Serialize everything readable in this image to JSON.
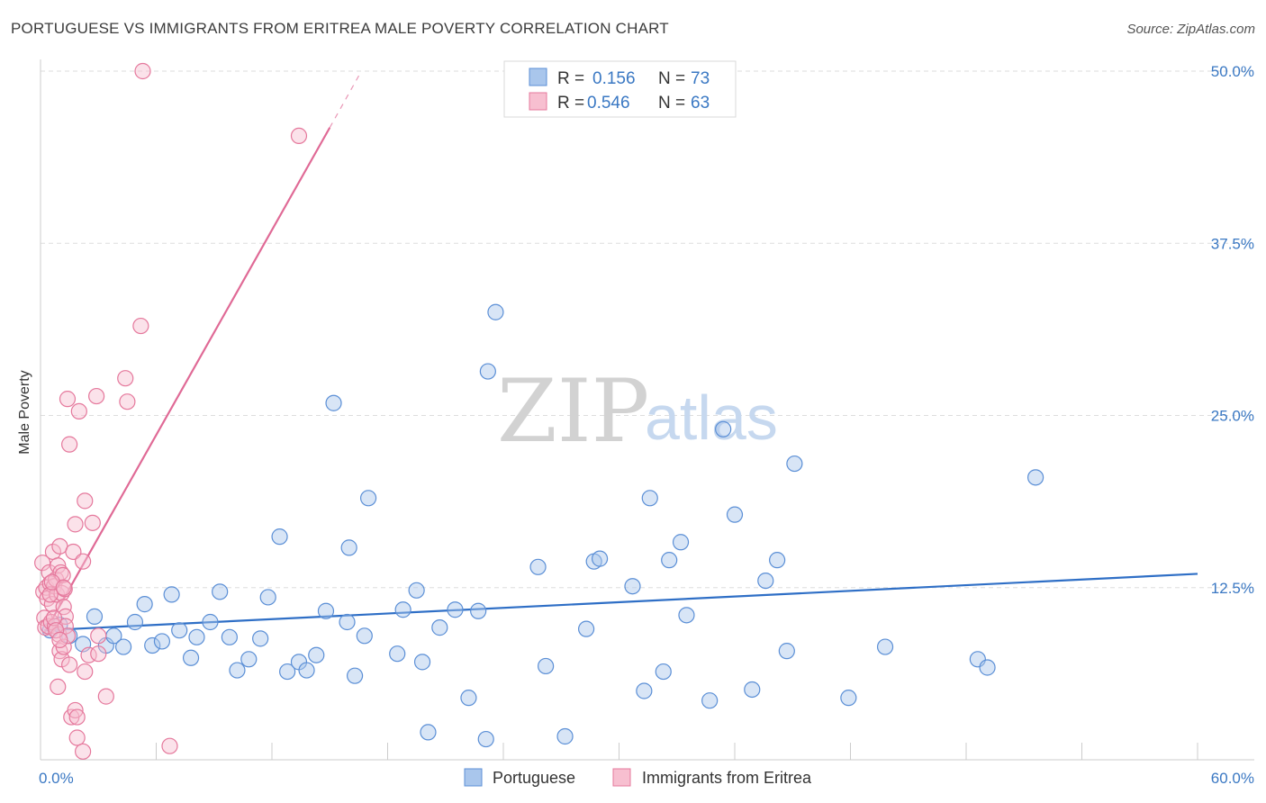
{
  "title": "PORTUGUESE VS IMMIGRANTS FROM ERITREA MALE POVERTY CORRELATION CHART",
  "source": "Source: ZipAtlas.com",
  "watermark": {
    "zip": "ZIP",
    "atlas": "atlas"
  },
  "legend": {
    "rows": [
      {
        "r_label": "R =",
        "r_value": "0.156",
        "n_label": "N =",
        "n_value": "73"
      },
      {
        "r_label": "R =",
        "r_value": "0.546",
        "n_label": "N =",
        "n_value": "63"
      }
    ]
  },
  "colors": {
    "blue_fill": "#a9c6ec",
    "blue_stroke": "#5b8fd6",
    "blue_line": "#2f6fc6",
    "pink_fill": "#f7bfd0",
    "pink_stroke": "#e5789c",
    "pink_line": "#e06a96",
    "grid": "#dddddd",
    "axis": "#cccccc",
    "tick_text": "#3a78c3"
  },
  "chart_data": {
    "type": "scatter",
    "title": "PORTUGUESE VS IMMIGRANTS FROM ERITREA MALE POVERTY CORRELATION CHART",
    "xlabel": "",
    "ylabel": "Male Poverty",
    "xlim": [
      0,
      60
    ],
    "ylim": [
      0,
      50
    ],
    "x_tick_labels": [
      "0.0%",
      "60.0%"
    ],
    "y_tick_labels": [
      "12.5%",
      "25.0%",
      "37.5%",
      "50.0%"
    ],
    "y_tick_values": [
      12.5,
      25.0,
      37.5,
      50.0
    ],
    "grid": true,
    "legend_position": "top-center",
    "series": [
      {
        "name": "Portuguese",
        "color": "#5b8fd6",
        "r": 0.156,
        "n": 73,
        "trend": {
          "x0": 0.2,
          "y0": 9.4,
          "x1": 60,
          "y1": 13.5
        },
        "points": [
          [
            0.5,
            9.4
          ],
          [
            1.0,
            9.8
          ],
          [
            1.5,
            9.0
          ],
          [
            2.2,
            8.4
          ],
          [
            2.8,
            10.4
          ],
          [
            3.4,
            8.3
          ],
          [
            3.8,
            9.0
          ],
          [
            4.3,
            8.2
          ],
          [
            4.9,
            10.0
          ],
          [
            5.4,
            11.3
          ],
          [
            5.8,
            8.3
          ],
          [
            6.3,
            8.6
          ],
          [
            6.8,
            12.0
          ],
          [
            7.2,
            9.4
          ],
          [
            7.8,
            7.4
          ],
          [
            8.1,
            8.9
          ],
          [
            8.8,
            10.0
          ],
          [
            9.3,
            12.2
          ],
          [
            9.8,
            8.9
          ],
          [
            10.2,
            6.5
          ],
          [
            10.8,
            7.3
          ],
          [
            11.4,
            8.8
          ],
          [
            11.8,
            11.8
          ],
          [
            12.4,
            16.2
          ],
          [
            12.8,
            6.4
          ],
          [
            13.4,
            7.1
          ],
          [
            13.8,
            6.5
          ],
          [
            14.3,
            7.6
          ],
          [
            14.8,
            10.8
          ],
          [
            16.0,
            15.4
          ],
          [
            16.3,
            6.1
          ],
          [
            16.8,
            9.0
          ],
          [
            17.0,
            19.0
          ],
          [
            18.5,
            7.7
          ],
          [
            18.8,
            10.9
          ],
          [
            19.5,
            12.3
          ],
          [
            19.8,
            7.1
          ],
          [
            20.1,
            2.0
          ],
          [
            20.7,
            9.6
          ],
          [
            21.5,
            10.9
          ],
          [
            22.2,
            4.5
          ],
          [
            22.7,
            10.8
          ],
          [
            23.2,
            28.2
          ],
          [
            23.1,
            1.5
          ],
          [
            23.6,
            32.5
          ],
          [
            25.8,
            14.0
          ],
          [
            26.2,
            6.8
          ],
          [
            27.2,
            1.7
          ],
          [
            28.3,
            9.5
          ],
          [
            28.7,
            14.4
          ],
          [
            29.0,
            14.6
          ],
          [
            30.7,
            12.6
          ],
          [
            31.3,
            5.0
          ],
          [
            31.6,
            19.0
          ],
          [
            32.3,
            6.4
          ],
          [
            32.6,
            14.5
          ],
          [
            33.2,
            15.8
          ],
          [
            33.5,
            10.5
          ],
          [
            34.7,
            4.3
          ],
          [
            35.4,
            24.0
          ],
          [
            36.0,
            17.8
          ],
          [
            36.9,
            5.1
          ],
          [
            37.6,
            13.0
          ],
          [
            38.2,
            14.5
          ],
          [
            38.7,
            7.9
          ],
          [
            39.1,
            21.5
          ],
          [
            41.9,
            4.5
          ],
          [
            43.8,
            8.2
          ],
          [
            48.6,
            7.3
          ],
          [
            49.1,
            6.7
          ],
          [
            51.6,
            20.5
          ],
          [
            15.2,
            25.9
          ],
          [
            15.9,
            10.0
          ]
        ]
      },
      {
        "name": "Immigrants from Eritrea",
        "color": "#e5789c",
        "r": 0.546,
        "n": 63,
        "trend": {
          "x0": 0.2,
          "y0": 9.2,
          "x1": 15.0,
          "y1": 45.9
        },
        "trend_dashed": {
          "x0": 15.0,
          "y0": 45.9,
          "x1": 16.6,
          "y1": 49.9
        },
        "points": [
          [
            0.1,
            14.3
          ],
          [
            0.15,
            12.2
          ],
          [
            0.2,
            10.3
          ],
          [
            0.25,
            9.6
          ],
          [
            0.3,
            12.5
          ],
          [
            0.35,
            11.7
          ],
          [
            0.4,
            9.7
          ],
          [
            0.45,
            13.6
          ],
          [
            0.5,
            12.8
          ],
          [
            0.55,
            10.0
          ],
          [
            0.6,
            11.3
          ],
          [
            0.65,
            15.1
          ],
          [
            0.7,
            12.6
          ],
          [
            0.75,
            9.7
          ],
          [
            0.8,
            13.1
          ],
          [
            0.85,
            12.0
          ],
          [
            0.9,
            14.1
          ],
          [
            0.95,
            9.1
          ],
          [
            1.0,
            15.5
          ],
          [
            1.05,
            13.6
          ],
          [
            1.1,
            12.1
          ],
          [
            1.15,
            13.4
          ],
          [
            1.2,
            11.1
          ],
          [
            1.25,
            12.4
          ],
          [
            1.3,
            10.4
          ],
          [
            0.9,
            5.3
          ],
          [
            1.0,
            7.9
          ],
          [
            1.1,
            7.3
          ],
          [
            1.2,
            8.2
          ],
          [
            1.3,
            9.7
          ],
          [
            1.4,
            9.0
          ],
          [
            1.4,
            26.2
          ],
          [
            1.5,
            22.9
          ],
          [
            1.5,
            6.9
          ],
          [
            1.6,
            3.1
          ],
          [
            1.7,
            15.1
          ],
          [
            1.8,
            17.1
          ],
          [
            1.8,
            3.6
          ],
          [
            1.9,
            3.1
          ],
          [
            1.9,
            1.6
          ],
          [
            2.0,
            25.3
          ],
          [
            2.2,
            14.4
          ],
          [
            2.3,
            6.4
          ],
          [
            2.3,
            18.8
          ],
          [
            2.2,
            0.6
          ],
          [
            2.5,
            7.6
          ],
          [
            2.7,
            17.2
          ],
          [
            2.9,
            26.4
          ],
          [
            3.0,
            7.7
          ],
          [
            3.0,
            9.0
          ],
          [
            3.4,
            4.6
          ],
          [
            4.4,
            27.7
          ],
          [
            4.5,
            26.0
          ],
          [
            5.2,
            31.5
          ],
          [
            6.7,
            1.0
          ],
          [
            13.4,
            45.3
          ],
          [
            5.3,
            50.0
          ],
          [
            0.5,
            12.0
          ],
          [
            0.6,
            12.9
          ],
          [
            0.7,
            10.3
          ],
          [
            0.8,
            9.4
          ],
          [
            1.0,
            8.7
          ],
          [
            1.2,
            12.5
          ]
        ]
      }
    ]
  },
  "bottom_legend": [
    {
      "label": "Portuguese"
    },
    {
      "label": "Immigrants from Eritrea"
    }
  ]
}
